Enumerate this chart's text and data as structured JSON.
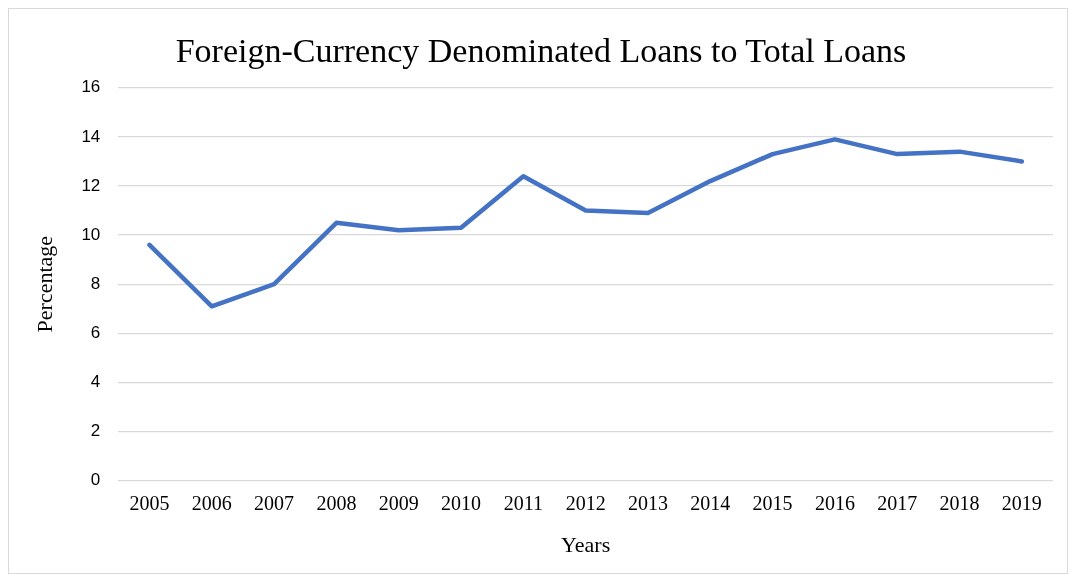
{
  "chart_data": {
    "type": "line",
    "title": "Foreign-Currency Denominated Loans to Total Loans",
    "xlabel": "Years",
    "ylabel": "Percentage",
    "categories": [
      "2005",
      "2006",
      "2007",
      "2008",
      "2009",
      "2010",
      "2011",
      "2012",
      "2013",
      "2014",
      "2015",
      "2016",
      "2017",
      "2018",
      "2019"
    ],
    "series": [
      {
        "color": "#4472c4",
        "values": [
          9.6,
          7.1,
          8.0,
          10.5,
          10.2,
          10.3,
          12.4,
          11.0,
          10.9,
          12.2,
          13.3,
          13.9,
          13.3,
          13.4,
          13.0
        ]
      }
    ],
    "ylim": [
      0,
      16
    ],
    "yticks": [
      0,
      2,
      4,
      6,
      8,
      10,
      12,
      14,
      16
    ],
    "grid": "y",
    "legend": false,
    "marker": "none",
    "line_style": "solid"
  }
}
